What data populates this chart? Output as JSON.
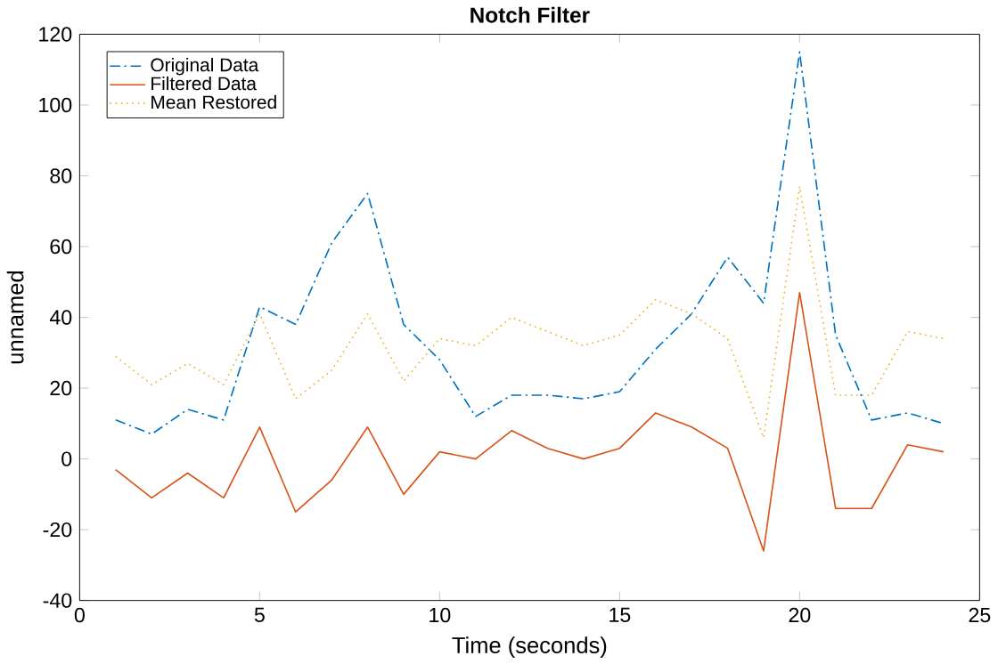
{
  "chart_data": {
    "type": "line",
    "title": "Notch Filter",
    "xlabel": "Time (seconds)",
    "ylabel": "unnamed",
    "x": [
      1,
      2,
      3,
      4,
      5,
      6,
      7,
      8,
      9,
      10,
      11,
      12,
      13,
      14,
      15,
      16,
      17,
      18,
      19,
      20,
      21,
      22,
      23,
      24
    ],
    "series": [
      {
        "name": "Original Data",
        "color": "#0072bd",
        "line_style": "dashdot",
        "values": [
          11,
          7,
          14,
          11,
          43,
          38,
          61,
          75,
          38,
          28,
          12,
          18,
          18,
          17,
          19,
          31,
          41,
          57,
          44,
          115,
          35,
          11,
          13,
          10
        ]
      },
      {
        "name": "Filtered Data",
        "color": "#d95319",
        "line_style": "solid",
        "values": [
          -3,
          -11,
          -4,
          -11,
          9,
          -15,
          -6,
          9,
          -10,
          2,
          0,
          8,
          3,
          0,
          3,
          13,
          9,
          3,
          -26,
          47,
          -14,
          -14,
          4,
          2
        ]
      },
      {
        "name": "Mean Restored",
        "color": "#edb120",
        "line_style": "dotted",
        "values": [
          29,
          21,
          27,
          21,
          41,
          17,
          25,
          41,
          22,
          34,
          32,
          40,
          36,
          32,
          35,
          45,
          41,
          34,
          6,
          77,
          18,
          18,
          36,
          34
        ]
      }
    ],
    "xlim": [
      0,
      25
    ],
    "xticks": [
      0,
      5,
      10,
      15,
      20,
      25
    ],
    "ylim": [
      -40,
      120
    ],
    "yticks": [
      -40,
      -20,
      0,
      20,
      40,
      60,
      80,
      100,
      120
    ],
    "grid": false,
    "legend": "top left",
    "marker": "none"
  }
}
